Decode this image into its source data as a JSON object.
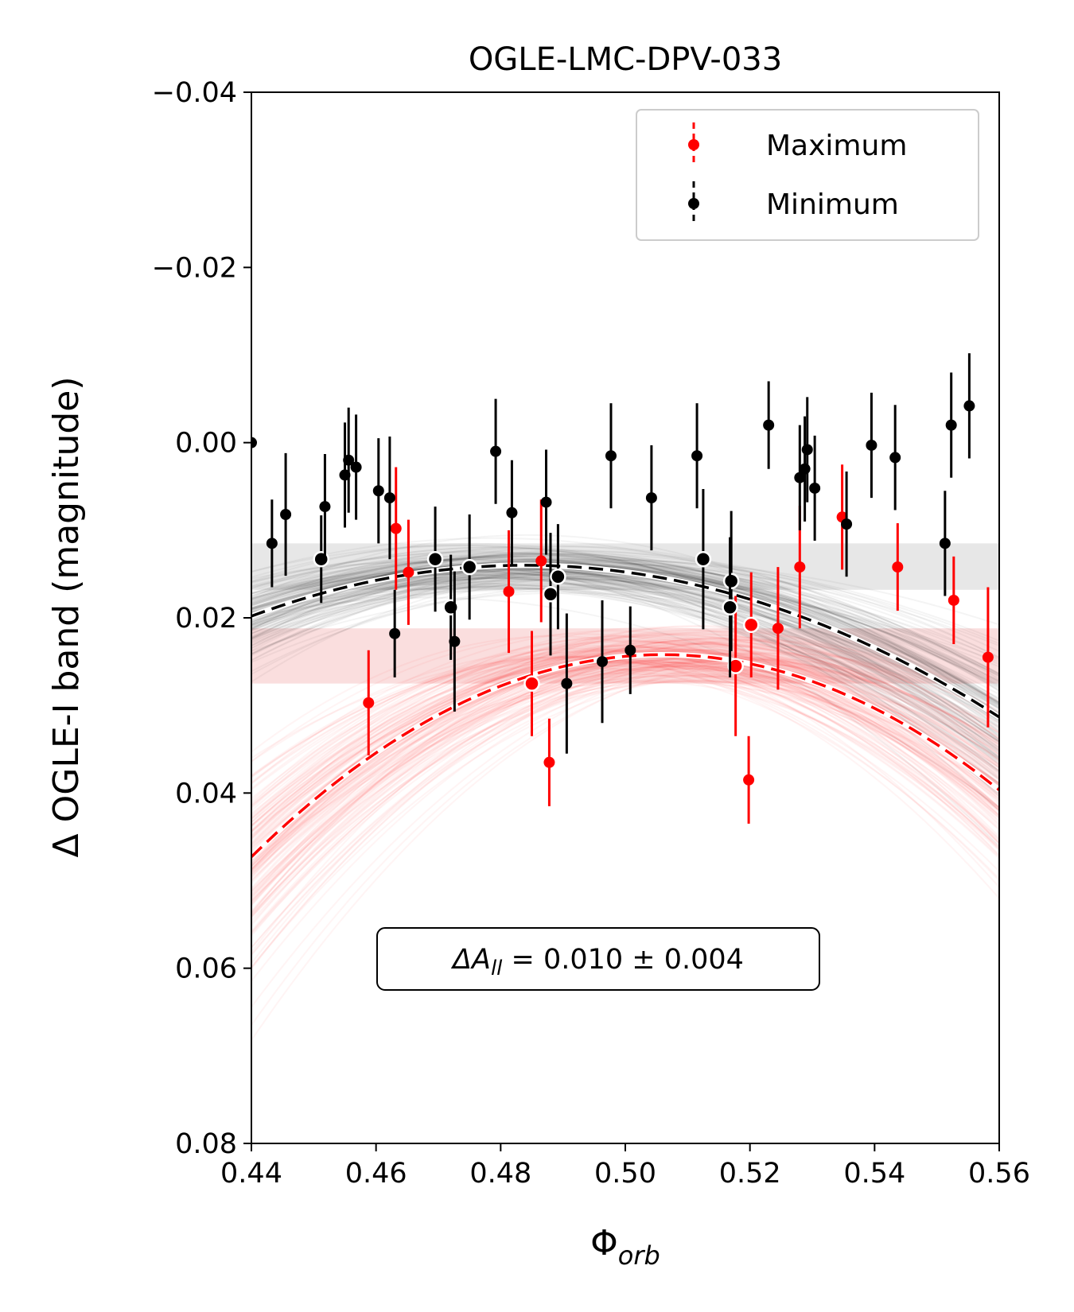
{
  "chart_data": {
    "type": "scatter",
    "title": "OGLE-LMC-DPV-033",
    "xlabel": "Φ",
    "xlabel_sub": "orb",
    "ylabel": "Δ OGLE-I band (magnitude)",
    "xlim": [
      0.44,
      0.56
    ],
    "ylim": [
      -0.04,
      0.08
    ],
    "y_inverted": true,
    "x_ticks": [
      0.44,
      0.46,
      0.48,
      0.5,
      0.52,
      0.54,
      0.56
    ],
    "x_tick_labels": [
      "0.44",
      "0.46",
      "0.48",
      "0.50",
      "0.52",
      "0.54",
      "0.56"
    ],
    "y_ticks": [
      -0.04,
      -0.02,
      0.0,
      0.02,
      0.04,
      0.06,
      0.08
    ],
    "y_tick_labels": [
      "−0.04",
      "−0.02",
      "0.00",
      "0.02",
      "0.04",
      "0.06",
      "0.08"
    ],
    "legend": {
      "position": "top-right",
      "entries": [
        {
          "name": "Maximum",
          "color": "#ff0000"
        },
        {
          "name": "Minimum",
          "color": "#000000"
        }
      ]
    },
    "annotation": {
      "prefix": "ΔA",
      "subscript": "ll",
      "value": " = 0.010 ± 0.004"
    },
    "bands": [
      {
        "color": "#bbbbbb",
        "y_low": 0.0115,
        "y_high": 0.0168
      },
      {
        "color": "#f0a0a0",
        "y_low": 0.0212,
        "y_high": 0.0275
      }
    ],
    "series": [
      {
        "name": "Maximum",
        "color": "#ff0000",
        "fit": {
          "vertex_x": 0.506,
          "vertex_y": 0.0242,
          "curvature": 5.3
        },
        "points": [
          {
            "x": 0.4588,
            "y": 0.0297,
            "err": 0.006
          },
          {
            "x": 0.4632,
            "y": 0.0098,
            "err": 0.007
          },
          {
            "x": 0.4652,
            "y": 0.0148,
            "err": 0.006
          },
          {
            "x": 0.4813,
            "y": 0.017,
            "err": 0.007
          },
          {
            "x": 0.485,
            "y": 0.0275,
            "err": 0.006
          },
          {
            "x": 0.4865,
            "y": 0.0135,
            "err": 0.007
          },
          {
            "x": 0.4878,
            "y": 0.0365,
            "err": 0.005
          },
          {
            "x": 0.5177,
            "y": 0.0255,
            "err": 0.008
          },
          {
            "x": 0.5198,
            "y": 0.0385,
            "err": 0.005
          },
          {
            "x": 0.5202,
            "y": 0.0208,
            "err": 0.006
          },
          {
            "x": 0.5245,
            "y": 0.0212,
            "err": 0.007
          },
          {
            "x": 0.528,
            "y": 0.0142,
            "err": 0.007
          },
          {
            "x": 0.5348,
            "y": 0.0085,
            "err": 0.006
          },
          {
            "x": 0.5437,
            "y": 0.0142,
            "err": 0.005
          },
          {
            "x": 0.5527,
            "y": 0.018,
            "err": 0.005
          },
          {
            "x": 0.5582,
            "y": 0.0245,
            "err": 0.008
          }
        ]
      },
      {
        "name": "Minimum",
        "color": "#000000",
        "fit": {
          "vertex_x": 0.484,
          "vertex_y": 0.014,
          "curvature": 3.0
        },
        "points": [
          {
            "x": 0.44,
            "y": 0.0,
            "err": 0.0
          },
          {
            "x": 0.4433,
            "y": 0.0115,
            "err": 0.005
          },
          {
            "x": 0.4455,
            "y": 0.0082,
            "err": 0.007
          },
          {
            "x": 0.4512,
            "y": 0.0133,
            "err": 0.005
          },
          {
            "x": 0.4518,
            "y": 0.0073,
            "err": 0.006
          },
          {
            "x": 0.455,
            "y": 0.0037,
            "err": 0.006
          },
          {
            "x": 0.4556,
            "y": 0.002,
            "err": 0.006
          },
          {
            "x": 0.4568,
            "y": 0.0028,
            "err": 0.006
          },
          {
            "x": 0.4604,
            "y": 0.0055,
            "err": 0.006
          },
          {
            "x": 0.4622,
            "y": 0.0063,
            "err": 0.007
          },
          {
            "x": 0.463,
            "y": 0.0218,
            "err": 0.005
          },
          {
            "x": 0.4695,
            "y": 0.0133,
            "err": 0.006
          },
          {
            "x": 0.472,
            "y": 0.0188,
            "err": 0.006
          },
          {
            "x": 0.4726,
            "y": 0.0227,
            "err": 0.008
          },
          {
            "x": 0.475,
            "y": 0.0142,
            "err": 0.006
          },
          {
            "x": 0.4792,
            "y": 0.001,
            "err": 0.006
          },
          {
            "x": 0.4818,
            "y": 0.008,
            "err": 0.006
          },
          {
            "x": 0.4873,
            "y": 0.0068,
            "err": 0.006
          },
          {
            "x": 0.488,
            "y": 0.0173,
            "err": 0.007
          },
          {
            "x": 0.4892,
            "y": 0.0153,
            "err": 0.006
          },
          {
            "x": 0.4906,
            "y": 0.0275,
            "err": 0.008
          },
          {
            "x": 0.4963,
            "y": 0.025,
            "err": 0.007
          },
          {
            "x": 0.4977,
            "y": 0.0015,
            "err": 0.006
          },
          {
            "x": 0.5008,
            "y": 0.0237,
            "err": 0.005
          },
          {
            "x": 0.5042,
            "y": 0.0063,
            "err": 0.006
          },
          {
            "x": 0.5115,
            "y": 0.0015,
            "err": 0.006
          },
          {
            "x": 0.5125,
            "y": 0.0133,
            "err": 0.008
          },
          {
            "x": 0.517,
            "y": 0.0158,
            "err": 0.008
          },
          {
            "x": 0.5168,
            "y": 0.0188,
            "err": 0.008
          },
          {
            "x": 0.523,
            "y": -0.002,
            "err": 0.005
          },
          {
            "x": 0.528,
            "y": 0.004,
            "err": 0.006
          },
          {
            "x": 0.5288,
            "y": 0.003,
            "err": 0.006
          },
          {
            "x": 0.5292,
            "y": 0.0008,
            "err": 0.006
          },
          {
            "x": 0.5304,
            "y": 0.0052,
            "err": 0.006
          },
          {
            "x": 0.5355,
            "y": 0.0093,
            "err": 0.006
          },
          {
            "x": 0.5395,
            "y": 0.0003,
            "err": 0.006
          },
          {
            "x": 0.5433,
            "y": 0.0017,
            "err": 0.006
          },
          {
            "x": 0.5513,
            "y": 0.0115,
            "err": 0.006
          },
          {
            "x": 0.5523,
            "y": -0.002,
            "err": 0.006
          },
          {
            "x": 0.5552,
            "y": -0.0042,
            "err": 0.006
          }
        ]
      }
    ]
  }
}
